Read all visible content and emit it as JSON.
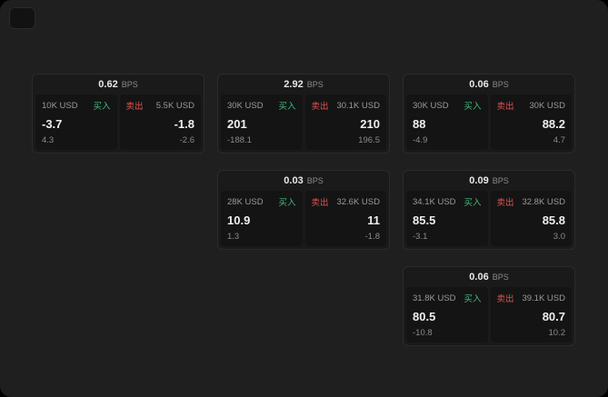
{
  "labels": {
    "bps_suffix": "BPS",
    "buy": "买入",
    "sell": "卖出"
  },
  "colors": {
    "buy": "#43b97f",
    "sell": "#e05252",
    "page_bg": "#1f1f1f",
    "card_bg": "#1a1a1a",
    "panel_bg": "#141414"
  },
  "cards": [
    {
      "col": 1,
      "row": 1,
      "bps": "0.62",
      "buy": {
        "amount": "10K USD",
        "value": "-3.7",
        "sub": "4.3"
      },
      "sell": {
        "amount": "5.5K USD",
        "value": "-1.8",
        "sub": "-2.6"
      }
    },
    {
      "col": 2,
      "row": 1,
      "bps": "2.92",
      "buy": {
        "amount": "30K USD",
        "value": "201",
        "sub": "-188.1"
      },
      "sell": {
        "amount": "30.1K USD",
        "value": "210",
        "sub": "196.5"
      }
    },
    {
      "col": 3,
      "row": 1,
      "bps": "0.06",
      "buy": {
        "amount": "30K USD",
        "value": "88",
        "sub": "-4.9"
      },
      "sell": {
        "amount": "30K USD",
        "value": "88.2",
        "sub": "4.7"
      }
    },
    {
      "col": 2,
      "row": 2,
      "bps": "0.03",
      "buy": {
        "amount": "28K USD",
        "value": "10.9",
        "sub": "1.3"
      },
      "sell": {
        "amount": "32.6K USD",
        "value": "11",
        "sub": "-1.8"
      }
    },
    {
      "col": 3,
      "row": 2,
      "bps": "0.09",
      "buy": {
        "amount": "34.1K USD",
        "value": "85.5",
        "sub": "-3.1"
      },
      "sell": {
        "amount": "32.8K USD",
        "value": "85.8",
        "sub": "3.0"
      }
    },
    {
      "col": 3,
      "row": 3,
      "bps": "0.06",
      "buy": {
        "amount": "31.8K USD",
        "value": "80.5",
        "sub": "-10.8"
      },
      "sell": {
        "amount": "39.1K USD",
        "value": "80.7",
        "sub": "10.2"
      }
    }
  ]
}
